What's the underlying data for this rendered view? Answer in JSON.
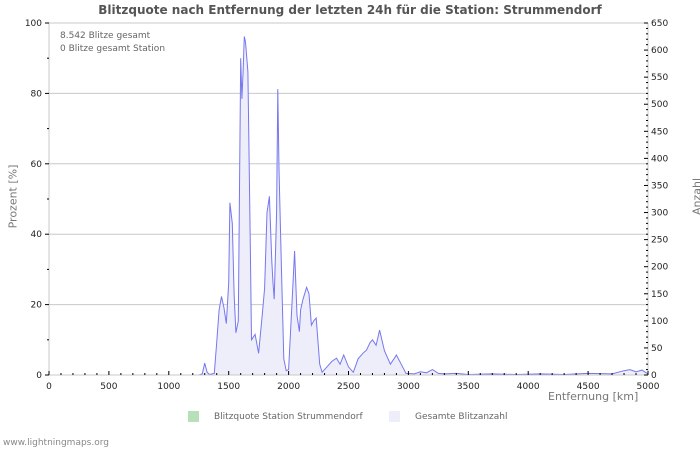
{
  "title": "Blitzquote nach Entfernung der letzten 24h für die Station: Strummendorf",
  "info": {
    "line1": "8.542 Blitze gesamt",
    "line2": "0 Blitze gesamt Station"
  },
  "axes": {
    "left_label": "Prozent   [%]",
    "right_label": "Anzahl",
    "x_label": "Entfernung   [km]"
  },
  "legend": [
    {
      "label": "Blitzquote Station Strummendorf",
      "color": "#b8e0b8"
    },
    {
      "label": "Gesamte Blitzanzahl",
      "color": "#eeeefa"
    }
  ],
  "footer": "www.lightningmaps.org",
  "colors": {
    "line": "#7777ee",
    "fill": "#eeeefa",
    "grid": "#c8c8c8",
    "axis": "#c8c8c8"
  },
  "chart_data": {
    "type": "area",
    "title": "Blitzquote nach Entfernung der letzten 24h für die Station: Strummendorf",
    "xlabel": "Entfernung [km]",
    "ylabel_left": "Prozent [%]",
    "ylabel_right": "Anzahl",
    "xlim": [
      0,
      5000
    ],
    "ylim_left": [
      0,
      100
    ],
    "ylim_right": [
      0,
      650
    ],
    "x_ticks": [
      0,
      500,
      1000,
      1500,
      2000,
      2500,
      3000,
      3500,
      4000,
      4500,
      5000
    ],
    "y_left_ticks": [
      0,
      20,
      40,
      60,
      80,
      100
    ],
    "y_right_ticks": [
      0,
      50,
      100,
      150,
      200,
      250,
      300,
      350,
      400,
      450,
      500,
      550,
      600,
      650
    ],
    "grid": true,
    "legend_position": "bottom",
    "series": [
      {
        "name": "Blitzquote Station Strummendorf",
        "axis": "left",
        "x": [],
        "values": []
      },
      {
        "name": "Gesamte Blitzanzahl",
        "axis": "right",
        "x": [
          0,
          1250,
          1280,
          1300,
          1320,
          1340,
          1380,
          1400,
          1420,
          1440,
          1460,
          1480,
          1500,
          1510,
          1530,
          1545,
          1560,
          1580,
          1600,
          1610,
          1620,
          1630,
          1640,
          1660,
          1680,
          1690,
          1720,
          1750,
          1780,
          1800,
          1820,
          1840,
          1860,
          1870,
          1880,
          1900,
          1910,
          1920,
          1940,
          1960,
          1980,
          2000,
          2030,
          2050,
          2070,
          2090,
          2100,
          2120,
          2150,
          2170,
          2190,
          2210,
          2230,
          2260,
          2280,
          2320,
          2360,
          2400,
          2430,
          2460,
          2500,
          2540,
          2580,
          2620,
          2650,
          2680,
          2700,
          2730,
          2760,
          2800,
          2850,
          2880,
          2900,
          2940,
          2980,
          3050,
          3100,
          3150,
          3200,
          3250,
          3300,
          3400,
          3500,
          3700,
          3900,
          4100,
          4300,
          4500,
          4700,
          4800,
          4850,
          4900,
          4950,
          5000
        ],
        "values": [
          0,
          0,
          2,
          22,
          5,
          1,
          3,
          60,
          120,
          145,
          125,
          95,
          170,
          318,
          280,
          150,
          78,
          100,
          585,
          510,
          560,
          625,
          615,
          560,
          240,
          65,
          75,
          40,
          110,
          160,
          300,
          330,
          210,
          170,
          140,
          300,
          528,
          380,
          200,
          30,
          8,
          10,
          140,
          229,
          110,
          80,
          120,
          140,
          162,
          150,
          92,
          100,
          105,
          20,
          5,
          15,
          25,
          31,
          20,
          37,
          15,
          5,
          30,
          40,
          46,
          60,
          65,
          55,
          83,
          45,
          20,
          30,
          37,
          20,
          3,
          2,
          6,
          4,
          10,
          3,
          2,
          3,
          1,
          2,
          1,
          2,
          1,
          3,
          2,
          8,
          10,
          6,
          9,
          2
        ]
      }
    ]
  }
}
